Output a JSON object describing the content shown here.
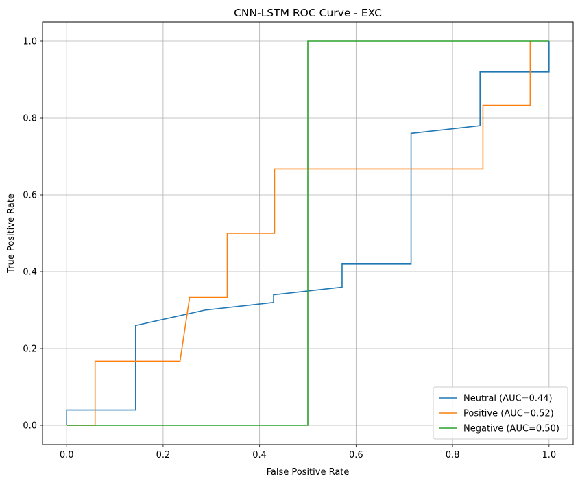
{
  "chart_data": {
    "type": "line",
    "title": "CNN-LSTM ROC Curve - EXC",
    "xlabel": "False Positive Rate",
    "ylabel": "True Positive Rate",
    "xlim": [
      -0.05,
      1.05
    ],
    "ylim": [
      -0.05,
      1.05
    ],
    "xticks": [
      0.0,
      0.2,
      0.4,
      0.6,
      0.8,
      1.0
    ],
    "yticks": [
      0.0,
      0.2,
      0.4,
      0.6,
      0.8,
      1.0
    ],
    "xtick_labels": [
      "0.0",
      "0.2",
      "0.4",
      "0.6",
      "0.8",
      "1.0"
    ],
    "ytick_labels": [
      "0.0",
      "0.2",
      "0.4",
      "0.6",
      "0.8",
      "1.0"
    ],
    "grid": true,
    "legend_position": "lower right",
    "series": [
      {
        "name": "Neutral (AUC=0.44)",
        "color": "#1f77b4",
        "points": [
          [
            0.0,
            0.0
          ],
          [
            0.0,
            0.04
          ],
          [
            0.143,
            0.04
          ],
          [
            0.143,
            0.26
          ],
          [
            0.286,
            0.3
          ],
          [
            0.429,
            0.32
          ],
          [
            0.429,
            0.34
          ],
          [
            0.571,
            0.36
          ],
          [
            0.571,
            0.42
          ],
          [
            0.714,
            0.42
          ],
          [
            0.714,
            0.76
          ],
          [
            0.857,
            0.78
          ],
          [
            0.857,
            0.92
          ],
          [
            1.0,
            0.92
          ],
          [
            1.0,
            1.0
          ]
        ]
      },
      {
        "name": "Positive (AUC=0.52)",
        "color": "#ff7f0e",
        "points": [
          [
            0.0,
            0.0
          ],
          [
            0.059,
            0.0
          ],
          [
            0.059,
            0.167
          ],
          [
            0.235,
            0.167
          ],
          [
            0.255,
            0.333
          ],
          [
            0.333,
            0.333
          ],
          [
            0.333,
            0.5
          ],
          [
            0.431,
            0.5
          ],
          [
            0.431,
            0.667
          ],
          [
            0.863,
            0.667
          ],
          [
            0.863,
            0.833
          ],
          [
            0.961,
            0.833
          ],
          [
            0.961,
            1.0
          ]
        ]
      },
      {
        "name": "Negative (AUC=0.50)",
        "color": "#2ca02c",
        "points": [
          [
            0.0,
            0.0
          ],
          [
            0.5,
            0.0
          ],
          [
            0.5,
            1.0
          ],
          [
            1.0,
            1.0
          ]
        ]
      }
    ]
  }
}
